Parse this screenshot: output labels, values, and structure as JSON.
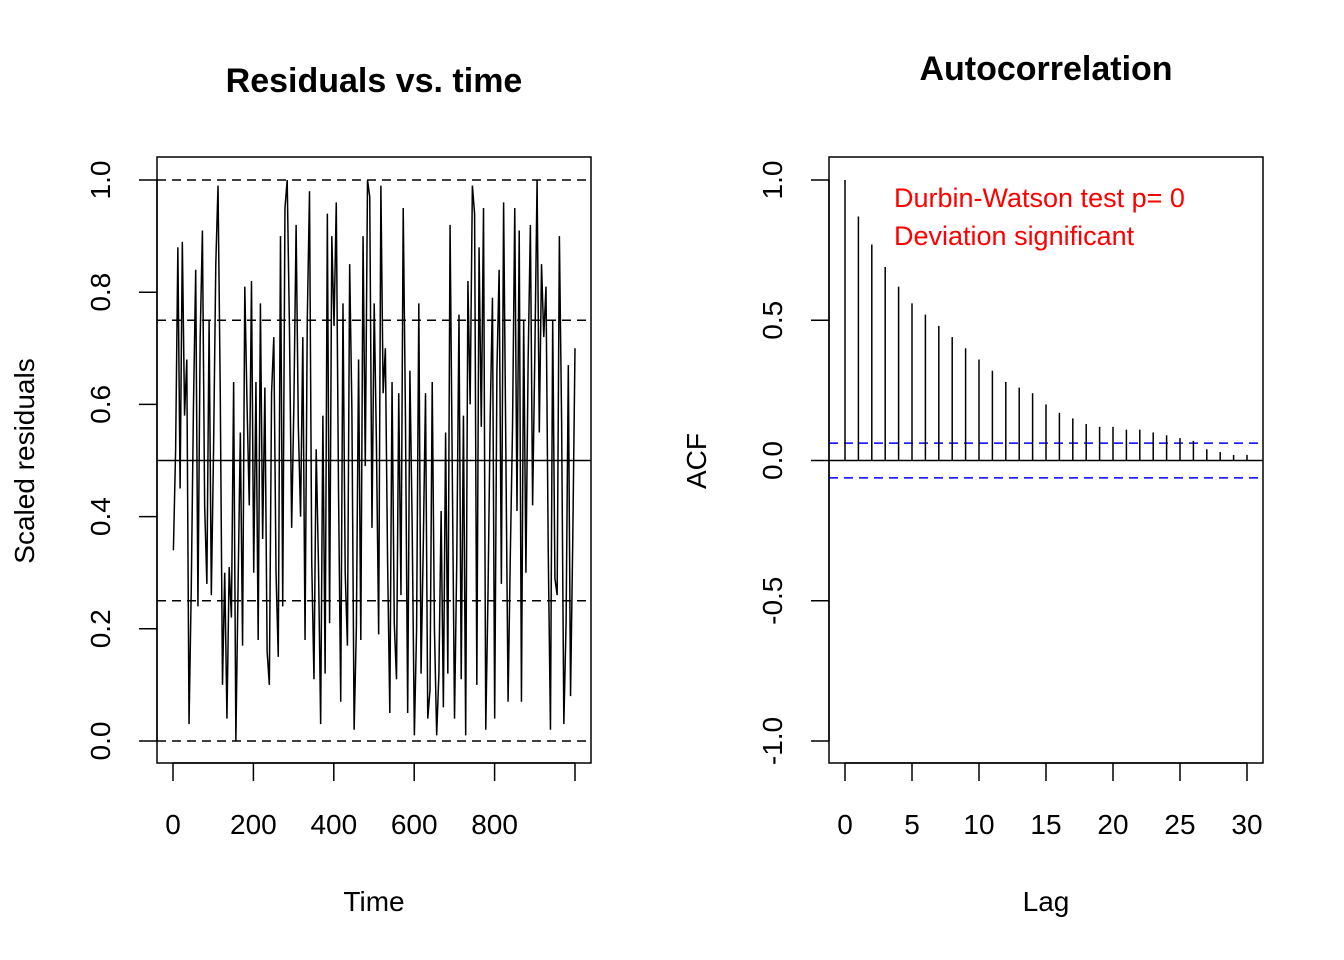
{
  "chart_data": [
    {
      "type": "line",
      "title": "Residuals vs. time",
      "xlabel": "Time",
      "ylabel": "Scaled residuals",
      "xlim": [
        0,
        1000
      ],
      "ylim": [
        0,
        1
      ],
      "x_ticks": [
        "0",
        "200",
        "400",
        "600",
        "800"
      ],
      "y_ticks": [
        "0.0",
        "0.2",
        "0.4",
        "0.6",
        "0.8",
        "1.0"
      ],
      "reference_lines": {
        "dashed": [
          0,
          0.25,
          0.75,
          1.0
        ],
        "solid": [
          0.5
        ]
      },
      "series": [
        {
          "x_start": 1,
          "x_end": 1000,
          "values": [
            0.34,
            0.52,
            0.88,
            0.45,
            0.89,
            0.58,
            0.68,
            0.03,
            0.27,
            0.6,
            0.84,
            0.24,
            0.72,
            0.91,
            0.42,
            0.28,
            0.75,
            0.26,
            0.52,
            0.85,
            0.99,
            0.62,
            0.1,
            0.3,
            0.04,
            0.31,
            0.22,
            0.64,
            0.0,
            0.28,
            0.55,
            0.17,
            0.81,
            0.6,
            0.42,
            0.82,
            0.3,
            0.64,
            0.18,
            0.78,
            0.36,
            0.63,
            0.16,
            0.1,
            0.62,
            0.72,
            0.3,
            0.15,
            0.9,
            0.24,
            0.95,
            1.0,
            0.74,
            0.38,
            0.6,
            0.92,
            0.56,
            0.4,
            0.72,
            0.18,
            0.75,
            0.98,
            0.32,
            0.11,
            0.52,
            0.32,
            0.03,
            0.58,
            0.12,
            0.94,
            0.21,
            0.9,
            0.74,
            0.96,
            0.45,
            0.07,
            0.78,
            0.3,
            0.17,
            0.85,
            0.59,
            0.02,
            0.2,
            0.68,
            0.18,
            0.9,
            0.49,
            1.0,
            0.97,
            0.38,
            0.78,
            0.53,
            0.19,
            0.99,
            0.62,
            0.7,
            0.32,
            0.05,
            0.64,
            0.21,
            0.11,
            0.62,
            0.26,
            0.95,
            0.58,
            0.05,
            0.66,
            0.39,
            0.01,
            0.2,
            0.78,
            0.12,
            0.35,
            0.62,
            0.04,
            0.09,
            0.64,
            0.2,
            0.01,
            0.12,
            0.41,
            0.06,
            0.55,
            0.12,
            0.92,
            0.48,
            0.04,
            0.32,
            0.76,
            0.11,
            0.58,
            0.01,
            0.82,
            0.6,
            0.99,
            0.94,
            0.1,
            0.88,
            0.56,
            0.95,
            0.02,
            0.26,
            0.58,
            0.79,
            0.04,
            0.66,
            0.84,
            0.28,
            0.96,
            0.52,
            0.07,
            0.33,
            0.56,
            0.95,
            0.41,
            0.91,
            0.07,
            0.75,
            0.3,
            0.68,
            0.92,
            0.42,
            0.69,
            1.0,
            0.55,
            0.85,
            0.72,
            0.81,
            0.34,
            0.02,
            0.75,
            0.29,
            0.26,
            0.9,
            0.57,
            0.03,
            0.21,
            0.67,
            0.08,
            0.36,
            0.7
          ]
        }
      ]
    },
    {
      "type": "bar",
      "title": "Autocorrelation",
      "xlabel": "Lag",
      "ylabel": "ACF",
      "xlim": [
        -1,
        31
      ],
      "ylim": [
        -1,
        1
      ],
      "x_ticks": [
        "0",
        "5",
        "10",
        "15",
        "20",
        "25",
        "30"
      ],
      "y_ticks": [
        "-1.0",
        "-0.5",
        "0.0",
        "0.5",
        "1.0"
      ],
      "lags": [
        0,
        1,
        2,
        3,
        4,
        5,
        6,
        7,
        8,
        9,
        10,
        11,
        12,
        13,
        14,
        15,
        16,
        17,
        18,
        19,
        20,
        21,
        22,
        23,
        24,
        25,
        26,
        27,
        28,
        29,
        30
      ],
      "values": [
        1.0,
        0.87,
        0.77,
        0.69,
        0.62,
        0.56,
        0.52,
        0.48,
        0.44,
        0.4,
        0.36,
        0.32,
        0.28,
        0.26,
        0.24,
        0.2,
        0.17,
        0.15,
        0.13,
        0.12,
        0.12,
        0.11,
        0.11,
        0.1,
        0.09,
        0.08,
        0.07,
        0.04,
        0.03,
        0.02,
        0.02
      ],
      "confidence_band": [
        -0.062,
        0.062
      ],
      "colors": {
        "bars": "#000000",
        "band": "#0000ff",
        "annotation": "#ff0000"
      },
      "annotations": [
        "Durbin-Watson test  p= 0",
        "Deviation  significant"
      ]
    }
  ]
}
